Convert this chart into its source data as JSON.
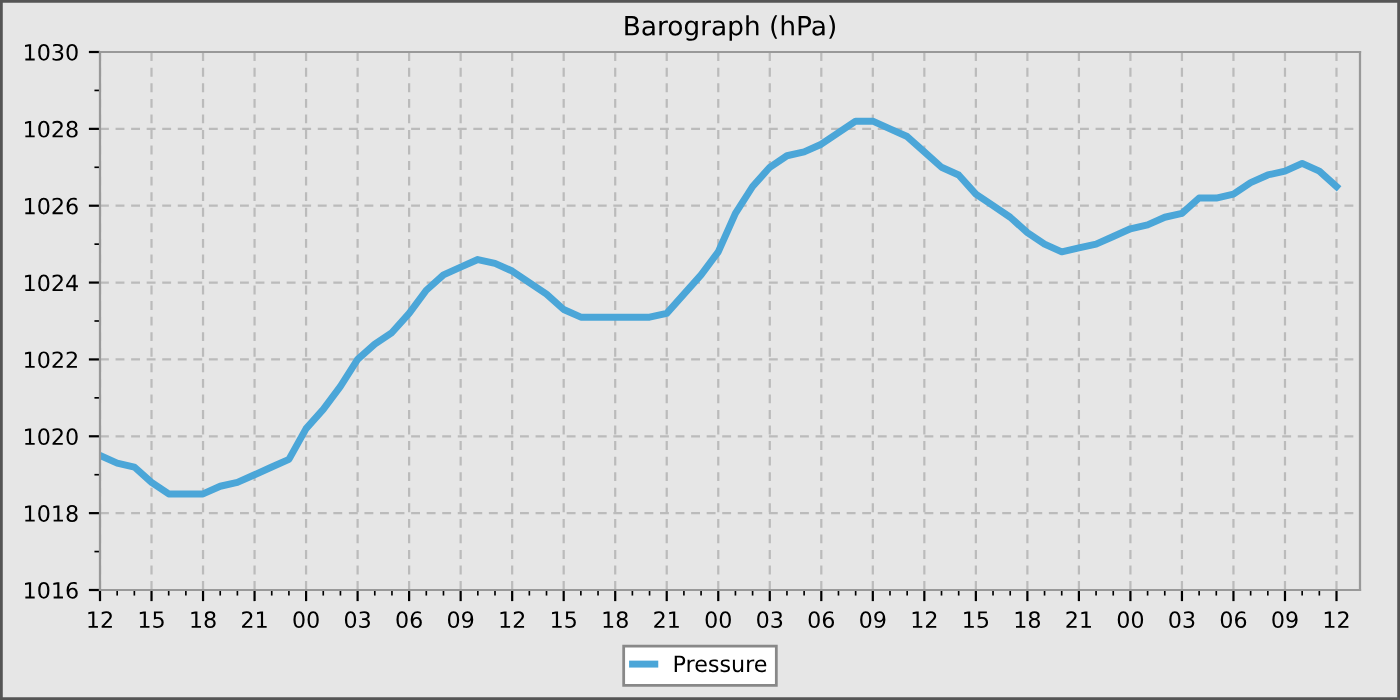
{
  "chart_data": {
    "type": "line",
    "title": "Barograph (hPa)",
    "categories": [
      "12",
      null,
      null,
      "15",
      null,
      null,
      "18",
      null,
      null,
      "21",
      null,
      null,
      "00",
      null,
      null,
      "03",
      null,
      null,
      "06",
      null,
      null,
      "09",
      null,
      null,
      "12",
      null,
      null,
      "15",
      null,
      null,
      "18",
      null,
      null,
      "21",
      null,
      null,
      "00",
      null,
      null,
      "03",
      null,
      null,
      "06",
      null,
      null,
      "09",
      null,
      null,
      "12",
      null,
      null,
      "15",
      null,
      null,
      "18",
      null,
      null,
      "21",
      null,
      null,
      "00",
      null,
      null,
      "03",
      null,
      null,
      "06",
      null,
      null,
      "09",
      null,
      null,
      "12"
    ],
    "series": [
      {
        "name": "Pressure",
        "color": "#4ba6d8",
        "values": [
          1019.5,
          1019.3,
          1019.2,
          1018.8,
          1018.5,
          1018.5,
          1018.5,
          1018.7,
          1018.8,
          1019.0,
          1019.2,
          1019.4,
          1020.2,
          1020.7,
          1021.3,
          1022.0,
          1022.4,
          1022.7,
          1023.2,
          1023.8,
          1024.2,
          1024.4,
          1024.6,
          1024.5,
          1024.3,
          1024.0,
          1023.7,
          1023.3,
          1023.1,
          1023.1,
          1023.1,
          1023.1,
          1023.1,
          1023.2,
          1023.7,
          1024.2,
          1024.8,
          1025.8,
          1026.5,
          1027.0,
          1027.3,
          1027.4,
          1027.6,
          1027.9,
          1028.2,
          1028.2,
          1028.0,
          1027.8,
          1027.4,
          1027.0,
          1026.8,
          1026.3,
          1026.0,
          1025.7,
          1025.3,
          1025.0,
          1024.8,
          1024.9,
          1025.0,
          1025.2,
          1025.4,
          1025.5,
          1025.7,
          1025.8,
          1026.2,
          1026.2,
          1026.3,
          1026.6,
          1026.8,
          1026.9,
          1027.1,
          1026.9,
          1026.5
        ]
      }
    ],
    "ylim": [
      1016,
      1030
    ],
    "yticks": [
      1016,
      {
        "value": 1017,
        "label": null
      },
      1018,
      {
        "value": 1019,
        "label": null
      },
      1020,
      {
        "value": 1021,
        "label": null
      },
      1022,
      {
        "value": 1023,
        "label": null
      },
      1024,
      {
        "value": 1025,
        "label": null
      },
      1026,
      {
        "value": 1027,
        "label": null
      },
      1028,
      {
        "value": 1029,
        "label": null
      },
      1030
    ],
    "grid": true,
    "legend": "bottom",
    "marker": "none",
    "line_style": "solid"
  }
}
